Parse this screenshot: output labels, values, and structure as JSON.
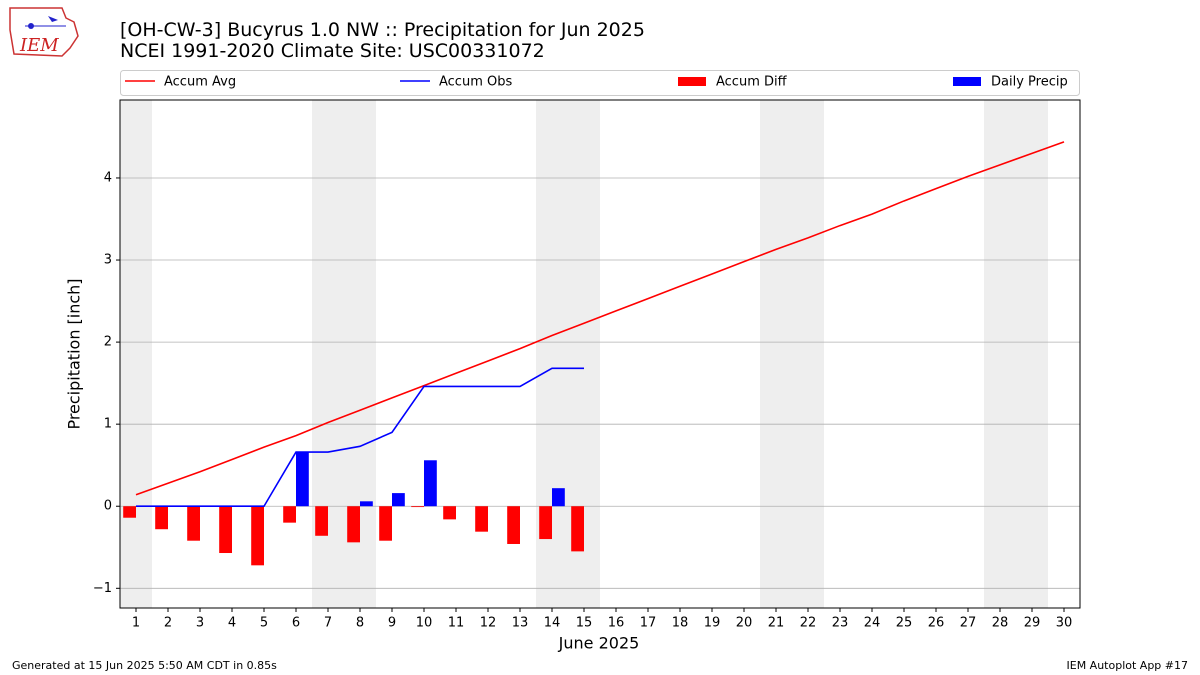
{
  "chart_data": {
    "type": "combo",
    "title": "[OH-CW-3] Bucyrus 1.0 NW :: Precipitation for Jun 2025",
    "subtitle": "NCEI 1991-2020 Climate Site: USC00331072",
    "x_label": "June 2025",
    "y_label": "Precipitation [inch]",
    "x": [
      1,
      2,
      3,
      4,
      5,
      6,
      7,
      8,
      9,
      10,
      11,
      12,
      13,
      14,
      15,
      16,
      17,
      18,
      19,
      20,
      21,
      22,
      23,
      24,
      25,
      26,
      27,
      28,
      29,
      30
    ],
    "xlim": [
      0.5,
      30.5
    ],
    "xticks": [
      1,
      2,
      3,
      4,
      5,
      6,
      7,
      8,
      9,
      10,
      11,
      12,
      13,
      14,
      15,
      16,
      17,
      18,
      19,
      20,
      21,
      22,
      23,
      24,
      25,
      26,
      27,
      28,
      29,
      30
    ],
    "ylim": [
      -1.24,
      4.95
    ],
    "yticks": [
      {
        "value": -1,
        "label": "−1"
      },
      0,
      1,
      2,
      3,
      4
    ],
    "grid": true,
    "weekend_bands": [
      [
        0.5,
        1.5
      ],
      [
        6.5,
        8.5
      ],
      [
        13.5,
        15.5
      ],
      [
        20.5,
        22.5
      ],
      [
        27.5,
        29.5
      ]
    ],
    "series": [
      {
        "name": "Accum Avg",
        "kind": "line",
        "color": "#ff0000",
        "values": [
          0.14,
          0.28,
          0.42,
          0.57,
          0.72,
          0.86,
          1.02,
          1.17,
          1.32,
          1.47,
          1.62,
          1.77,
          1.92,
          2.08,
          2.23,
          2.38,
          2.53,
          2.68,
          2.83,
          2.98,
          3.13,
          3.27,
          3.42,
          3.56,
          3.72,
          3.87,
          4.02,
          4.16,
          4.3,
          4.44
        ]
      },
      {
        "name": "Accum Obs",
        "kind": "line",
        "color": "#0000ff",
        "values": [
          0,
          0,
          0,
          0,
          0,
          0.66,
          0.66,
          0.73,
          0.9,
          1.46,
          1.46,
          1.46,
          1.46,
          1.68,
          1.68,
          null,
          null,
          null,
          null,
          null,
          null,
          null,
          null,
          null,
          null,
          null,
          null,
          null,
          null,
          null
        ]
      },
      {
        "name": "Accum Diff",
        "kind": "bar",
        "offset": -0.4,
        "color": "#ff0000",
        "values": [
          -0.14,
          -0.28,
          -0.42,
          -0.57,
          -0.72,
          -0.2,
          -0.36,
          -0.44,
          -0.42,
          -0.01,
          -0.16,
          -0.31,
          -0.46,
          -0.4,
          -0.55,
          null,
          null,
          null,
          null,
          null,
          null,
          null,
          null,
          null,
          null,
          null,
          null,
          null,
          null,
          null
        ]
      },
      {
        "name": "Daily Precip",
        "kind": "bar",
        "offset": 0,
        "color": "#0000ff",
        "values": [
          0,
          0,
          0,
          0,
          0,
          0.66,
          0,
          0.06,
          0.16,
          0.56,
          0,
          0,
          0,
          0.22,
          0,
          null,
          null,
          null,
          null,
          null,
          null,
          null,
          null,
          null,
          null,
          null,
          null,
          null,
          null,
          null
        ]
      }
    ]
  },
  "footer": {
    "left": "Generated at 15 Jun 2025 5:50 AM CDT in 0.85s",
    "right": "IEM Autoplot App #17"
  },
  "logo": {
    "text": "IEM"
  }
}
